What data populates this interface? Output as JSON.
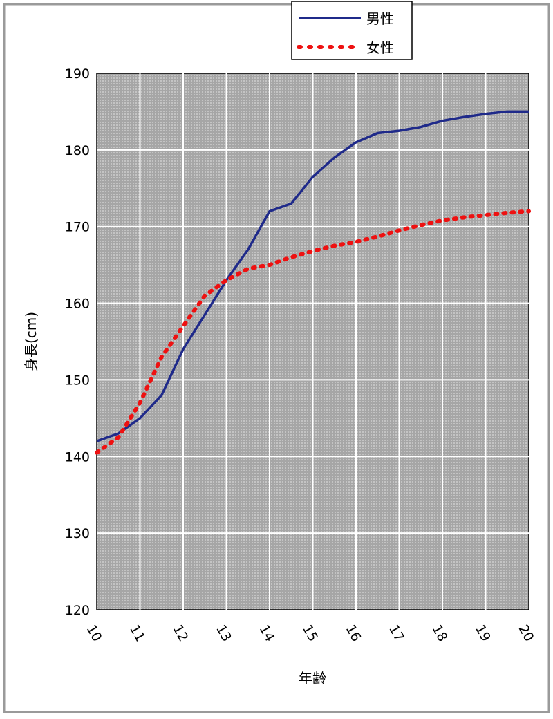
{
  "chart_data": {
    "type": "line",
    "title": "",
    "xlabel": "年齢",
    "ylabel": "身長(cm)",
    "xlim": [
      10,
      20
    ],
    "ylim": [
      120,
      190
    ],
    "x_ticks": [
      10,
      11,
      12,
      13,
      14,
      15,
      16,
      17,
      18,
      19,
      20
    ],
    "y_ticks": [
      120,
      130,
      140,
      150,
      160,
      170,
      180,
      190
    ],
    "grid": true,
    "legend_position": "top-right",
    "series": [
      {
        "name": "男性",
        "color": "#1f2a8a",
        "style": "solid",
        "x": [
          10,
          10.5,
          11,
          11.5,
          12,
          12.5,
          13,
          13.5,
          14,
          14.5,
          15,
          15.5,
          16,
          16.5,
          17,
          17.5,
          18,
          18.5,
          19,
          19.5,
          20
        ],
        "y": [
          142,
          143,
          145,
          148,
          154,
          158.5,
          163,
          167,
          172,
          173,
          176.5,
          179,
          181,
          182.2,
          182.5,
          183,
          183.8,
          184.3,
          184.7,
          185,
          185
        ]
      },
      {
        "name": "女性",
        "color": "#ee1111",
        "style": "dotted",
        "x": [
          10,
          10.5,
          11,
          11.5,
          12,
          12.5,
          13,
          13.5,
          14,
          14.5,
          15,
          15.5,
          16,
          16.5,
          17,
          17.5,
          18,
          18.5,
          19,
          19.5,
          20
        ],
        "y": [
          140.5,
          142.5,
          147,
          153,
          157,
          161,
          163,
          164.5,
          165,
          166,
          166.8,
          167.5,
          168,
          168.7,
          169.5,
          170.2,
          170.8,
          171.2,
          171.5,
          171.8,
          172
        ]
      }
    ]
  }
}
